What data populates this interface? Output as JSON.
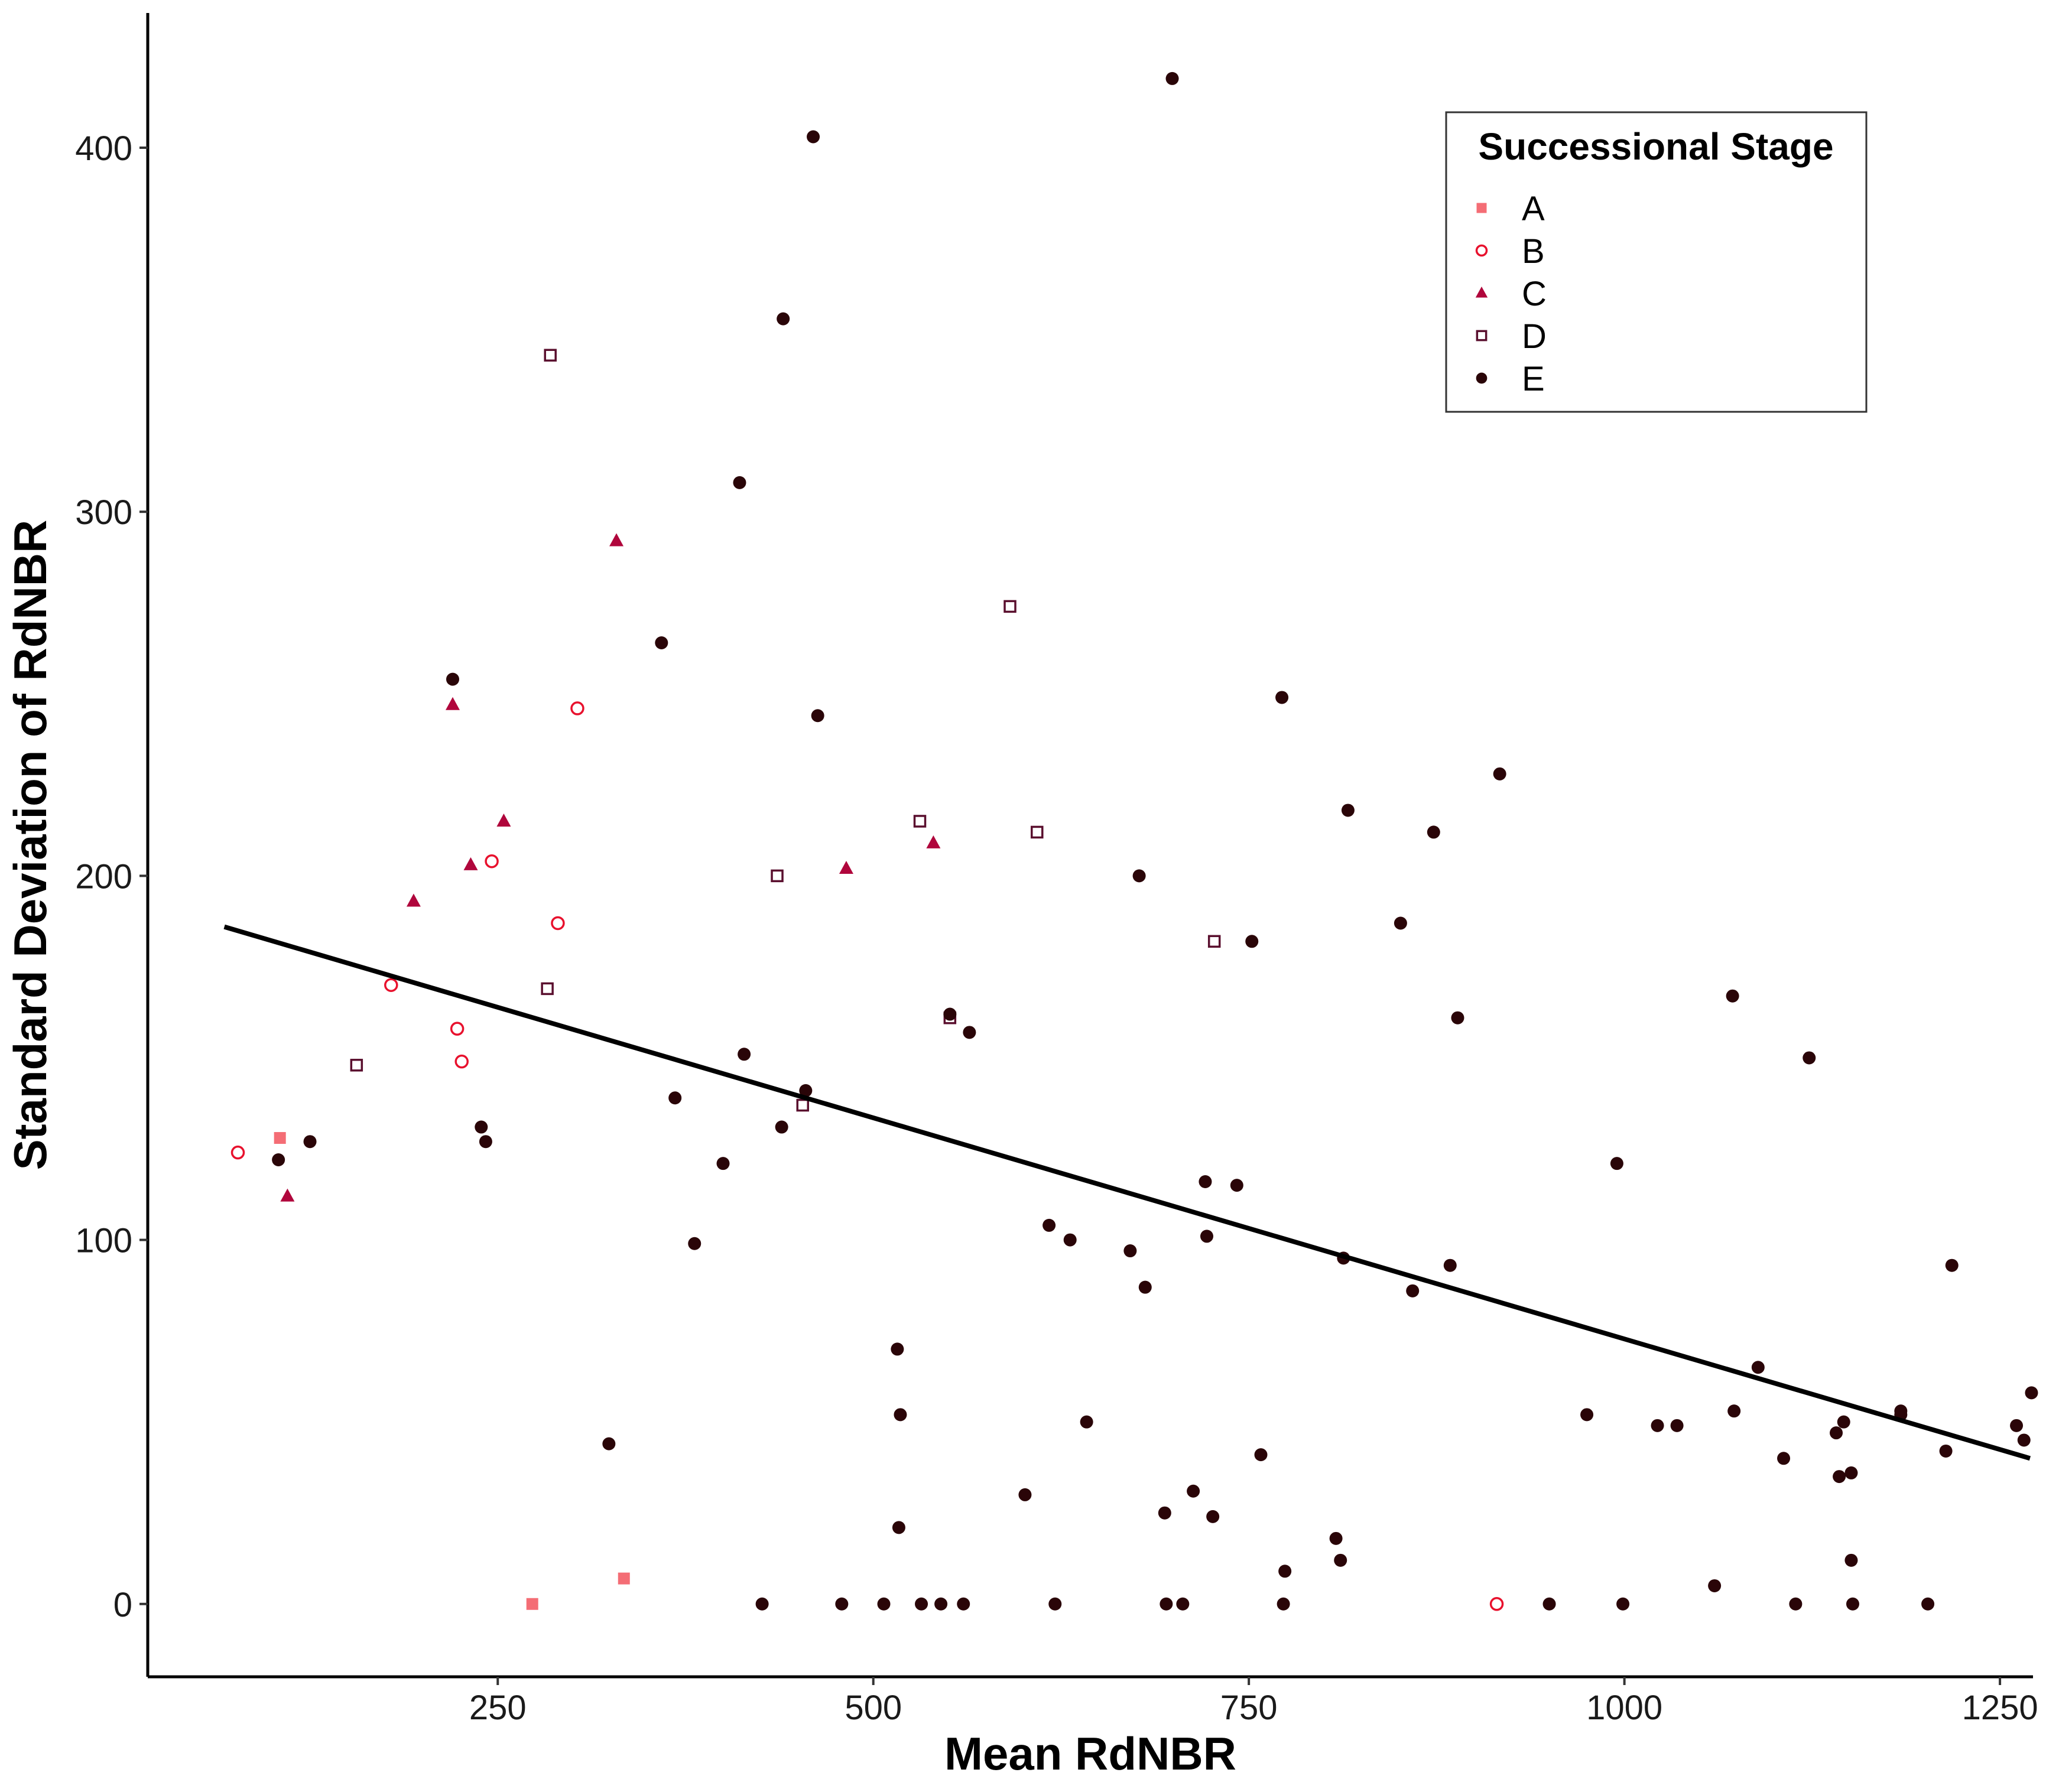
{
  "chart_data": {
    "type": "scatter",
    "xlabel": "Mean RdNBR",
    "ylabel": "Standard Deviation of RdNBR",
    "xlim": [
      17,
      1272
    ],
    "ylim": [
      -20,
      437
    ],
    "xticks": [
      250,
      500,
      750,
      1000,
      1250
    ],
    "yticks": [
      0,
      100,
      200,
      300,
      400
    ],
    "grid": false,
    "legend": {
      "title": "Successional Stage",
      "position": "top-right"
    },
    "series": [
      {
        "name": "A",
        "marker": "filled-square",
        "color": "#f46d75",
        "points": [
          [
            105,
            128
          ],
          [
            273,
            0
          ],
          [
            334,
            7
          ]
        ]
      },
      {
        "name": "B",
        "marker": "open-circle",
        "color": "#e8112d",
        "points": [
          [
            77,
            124
          ],
          [
            179,
            170
          ],
          [
            223,
            158
          ],
          [
            226,
            149
          ],
          [
            246,
            204
          ],
          [
            290,
            187
          ],
          [
            303,
            246
          ],
          [
            915,
            0
          ]
        ]
      },
      {
        "name": "C",
        "marker": "filled-triangle",
        "color": "#b0063c",
        "points": [
          [
            110,
            112
          ],
          [
            194,
            193
          ],
          [
            220,
            247
          ],
          [
            232,
            203
          ],
          [
            254,
            215
          ],
          [
            329,
            292
          ],
          [
            482,
            202
          ],
          [
            540,
            209
          ]
        ]
      },
      {
        "name": "D",
        "marker": "open-square",
        "color": "#5a0f2e",
        "points": [
          [
            156,
            148
          ],
          [
            283,
            169
          ],
          [
            285,
            343
          ],
          [
            436,
            200
          ],
          [
            453,
            137
          ],
          [
            531,
            215
          ],
          [
            551,
            161
          ],
          [
            591,
            274
          ],
          [
            609,
            212
          ],
          [
            727,
            182
          ]
        ]
      },
      {
        "name": "E",
        "marker": "filled-circle",
        "color": "#2a0508",
        "points": [
          [
            104,
            122
          ],
          [
            125,
            127
          ],
          [
            220,
            254
          ],
          [
            239,
            131
          ],
          [
            242,
            127
          ],
          [
            324,
            44
          ],
          [
            359,
            264
          ],
          [
            368,
            139
          ],
          [
            381,
            99
          ],
          [
            400,
            121
          ],
          [
            411,
            308
          ],
          [
            414,
            151
          ],
          [
            426,
            0
          ],
          [
            439,
            131
          ],
          [
            440,
            353
          ],
          [
            455,
            141
          ],
          [
            460,
            403
          ],
          [
            463,
            244
          ],
          [
            479,
            0
          ],
          [
            507,
            0
          ],
          [
            516,
            70
          ],
          [
            517,
            21
          ],
          [
            518,
            52
          ],
          [
            532,
            0
          ],
          [
            545,
            0
          ],
          [
            551,
            162
          ],
          [
            560,
            0
          ],
          [
            564,
            157
          ],
          [
            601,
            30
          ],
          [
            617,
            104
          ],
          [
            621,
            0
          ],
          [
            631,
            100
          ],
          [
            642,
            50
          ],
          [
            671,
            97
          ],
          [
            677,
            200
          ],
          [
            681,
            87
          ],
          [
            694,
            25
          ],
          [
            695,
            0
          ],
          [
            699,
            419
          ],
          [
            706,
            0
          ],
          [
            713,
            31
          ],
          [
            721,
            116
          ],
          [
            722,
            101
          ],
          [
            726,
            24
          ],
          [
            742,
            115
          ],
          [
            752,
            182
          ],
          [
            758,
            41
          ],
          [
            772,
            249
          ],
          [
            773,
            0
          ],
          [
            774,
            9
          ],
          [
            808,
            18
          ],
          [
            811,
            12
          ],
          [
            813,
            95
          ],
          [
            816,
            218
          ],
          [
            851,
            187
          ],
          [
            859,
            86
          ],
          [
            873,
            212
          ],
          [
            884,
            93
          ],
          [
            889,
            161
          ],
          [
            917,
            228
          ],
          [
            950,
            0
          ],
          [
            975,
            52
          ],
          [
            995,
            121
          ],
          [
            999,
            0
          ],
          [
            1022,
            49
          ],
          [
            1035,
            49
          ],
          [
            1060,
            5
          ],
          [
            1072,
            167
          ],
          [
            1073,
            53
          ],
          [
            1089,
            65
          ],
          [
            1106,
            40
          ],
          [
            1114,
            0
          ],
          [
            1123,
            150
          ],
          [
            1141,
            47
          ],
          [
            1143,
            35
          ],
          [
            1146,
            50
          ],
          [
            1151,
            36
          ],
          [
            1151,
            12
          ],
          [
            1152,
            0
          ],
          [
            1184,
            53
          ],
          [
            1184,
            52
          ],
          [
            1202,
            0
          ],
          [
            1214,
            42
          ],
          [
            1218,
            93
          ],
          [
            1261,
            49
          ],
          [
            1266,
            45
          ],
          [
            1271,
            58
          ]
        ]
      }
    ],
    "trend_line": {
      "color": "#000000",
      "from": [
        68,
        186
      ],
      "to": [
        1270,
        40
      ]
    }
  }
}
